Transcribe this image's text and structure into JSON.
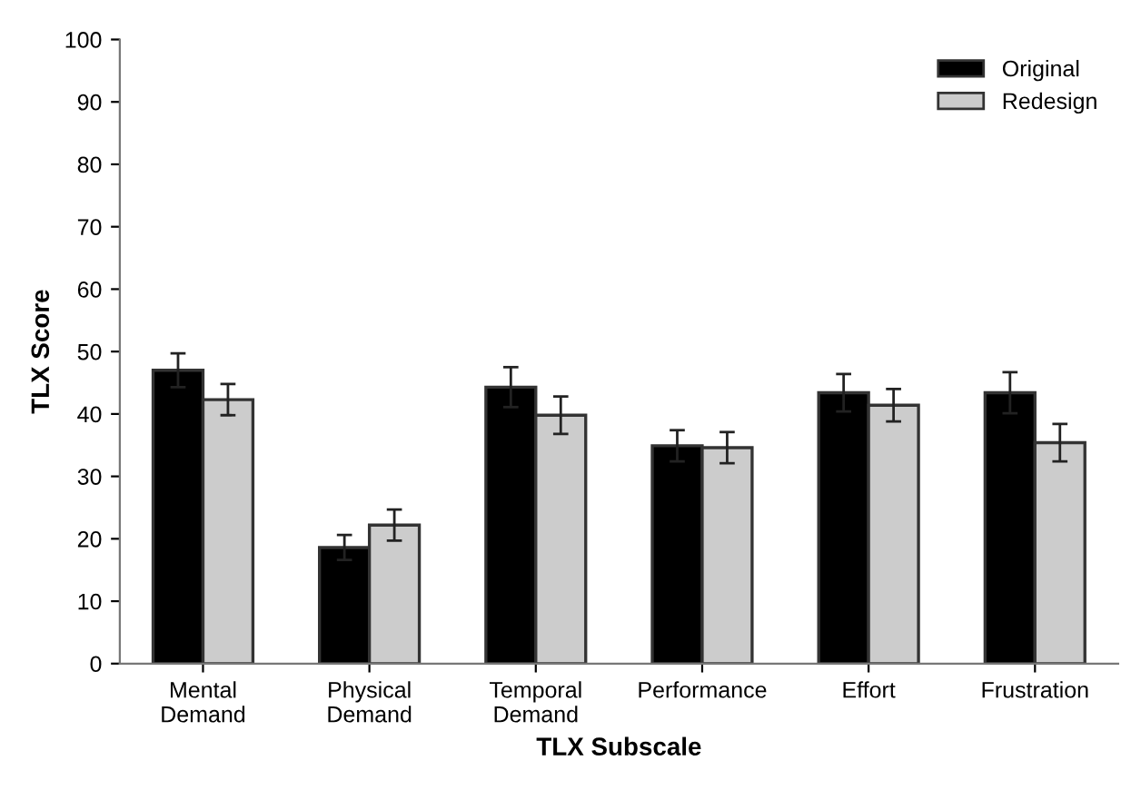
{
  "chart_data": {
    "type": "bar",
    "xlabel": "TLX Subscale",
    "ylabel": "TLX Score",
    "categories": [
      "Mental\nDemand",
      "Physical\nDemand",
      "Temporal\nDemand",
      "Performance",
      "Effort",
      "Frustration"
    ],
    "series": [
      {
        "name": "Original",
        "color": "#000000",
        "values": [
          47,
          18.6,
          44.3,
          34.9,
          43.4,
          43.4
        ],
        "errors": [
          2.7,
          2,
          3.2,
          2.5,
          3,
          3.3
        ]
      },
      {
        "name": "Redesign",
        "color": "#cccccc",
        "values": [
          42.3,
          22.2,
          39.8,
          34.6,
          41.4,
          35.4
        ],
        "errors": [
          2.5,
          2.5,
          3,
          2.5,
          2.6,
          3
        ]
      }
    ],
    "ylim": [
      0,
      100
    ],
    "yticks": [
      0,
      10,
      20,
      30,
      40,
      50,
      60,
      70,
      80,
      90,
      100
    ],
    "grid": false,
    "legend": "top right"
  }
}
